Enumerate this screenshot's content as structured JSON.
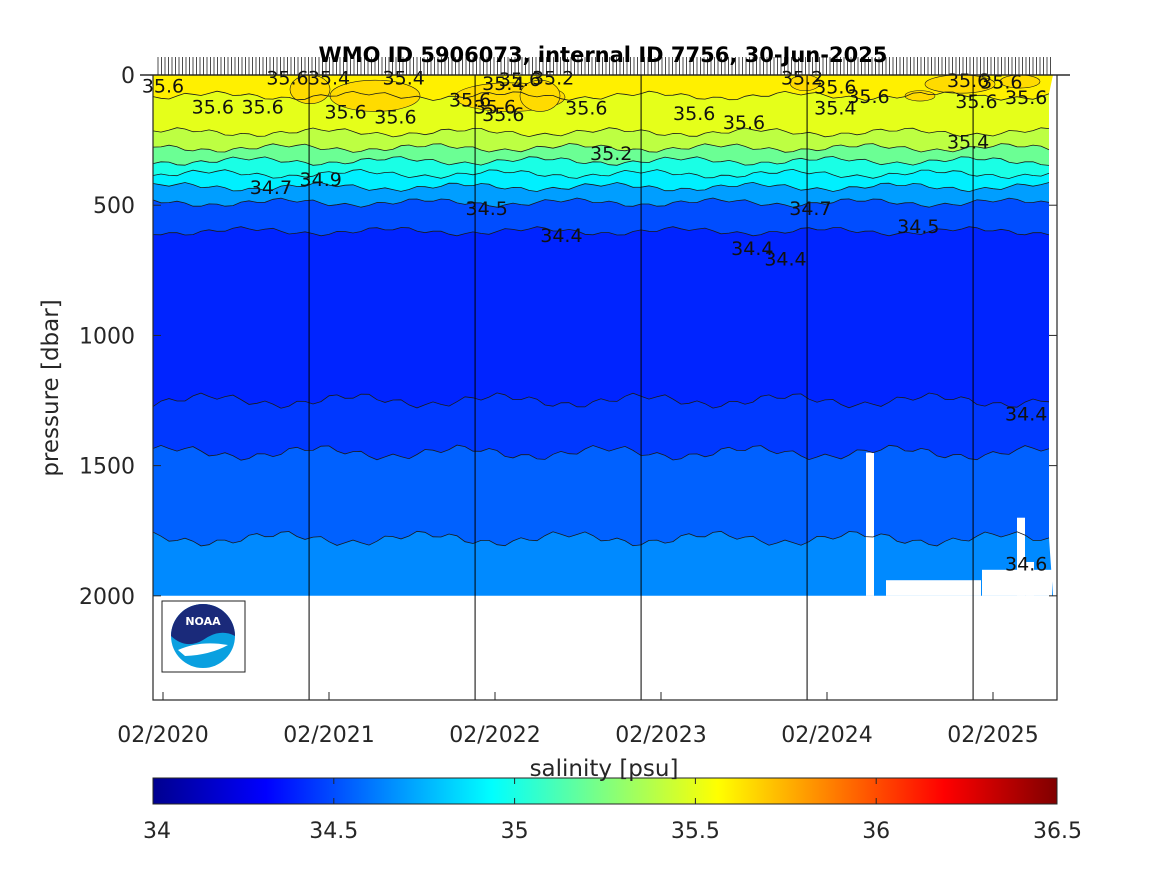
{
  "chart_data": {
    "type": "heatmap",
    "title": "WMO ID 5906073, internal ID 7756, 30-Jun-2025",
    "xlabel": "",
    "ylabel": "pressure [dbar]",
    "x_ticks": [
      "02/2020",
      "02/2021",
      "02/2022",
      "02/2023",
      "02/2024",
      "02/2025"
    ],
    "y_ticks": [
      0,
      500,
      1000,
      1500,
      2000
    ],
    "ylim": [
      2400,
      0
    ],
    "y_reversed": true,
    "colorbar": {
      "label": "salinity [psu]",
      "colormap": "jet",
      "ticks": [
        34,
        34.5,
        35,
        35.5,
        36,
        36.5
      ],
      "range": [
        34,
        36.5
      ]
    },
    "year_dividers": [
      "2021",
      "2022",
      "2023",
      "2024",
      "2025"
    ],
    "layers": [
      {
        "salinity": 35.6,
        "depth_top": 0,
        "depth_bottom": 80
      },
      {
        "salinity": 35.5,
        "depth_top": 80,
        "depth_bottom": 220
      },
      {
        "salinity": 35.4,
        "depth_top": 220,
        "depth_bottom": 280
      },
      {
        "salinity": 35.2,
        "depth_top": 280,
        "depth_bottom": 330
      },
      {
        "salinity": 35.0,
        "depth_top": 330,
        "depth_bottom": 380
      },
      {
        "salinity": 34.9,
        "depth_top": 380,
        "depth_bottom": 430
      },
      {
        "salinity": 34.7,
        "depth_top": 430,
        "depth_bottom": 490
      },
      {
        "salinity": 34.5,
        "depth_top": 490,
        "depth_bottom": 600
      },
      {
        "salinity": 34.4,
        "depth_top": 600,
        "depth_bottom": 1250
      },
      {
        "salinity": 34.45,
        "depth_top": 1250,
        "depth_bottom": 1450
      },
      {
        "salinity": 34.55,
        "depth_top": 1450,
        "depth_bottom": 1780
      },
      {
        "salinity": 34.65,
        "depth_top": 1780,
        "depth_bottom": 2000
      }
    ],
    "contour_labels": [
      {
        "text": "35.6",
        "x": 2020.0,
        "y": 40
      },
      {
        "text": "35.6",
        "x": 2020.3,
        "y": 120
      },
      {
        "text": "35.6",
        "x": 2020.6,
        "y": 120
      },
      {
        "text": "35.6",
        "x": 2020.75,
        "y": 10
      },
      {
        "text": "35.4",
        "x": 2021.0,
        "y": 10
      },
      {
        "text": "35.4",
        "x": 2021.45,
        "y": 10
      },
      {
        "text": "35.6",
        "x": 2021.1,
        "y": 140
      },
      {
        "text": "35.6",
        "x": 2021.4,
        "y": 160
      },
      {
        "text": "35.6",
        "x": 2021.85,
        "y": 95
      },
      {
        "text": "35.6",
        "x": 2022.0,
        "y": 120
      },
      {
        "text": "35.6",
        "x": 2022.05,
        "y": 150
      },
      {
        "text": "35.4",
        "x": 2022.05,
        "y": 30
      },
      {
        "text": "35.6",
        "x": 2022.15,
        "y": 15
      },
      {
        "text": "35.2",
        "x": 2022.35,
        "y": 10
      },
      {
        "text": "35.6",
        "x": 2022.55,
        "y": 125
      },
      {
        "text": "35.2",
        "x": 2022.7,
        "y": 300
      },
      {
        "text": "35.6",
        "x": 2023.2,
        "y": 145
      },
      {
        "text": "35.6",
        "x": 2023.5,
        "y": 180
      },
      {
        "text": "35.2",
        "x": 2023.85,
        "y": 10
      },
      {
        "text": "35.6",
        "x": 2024.05,
        "y": 45
      },
      {
        "text": "35.6",
        "x": 2024.25,
        "y": 80
      },
      {
        "text": "35.4",
        "x": 2024.05,
        "y": 125
      },
      {
        "text": "35.6",
        "x": 2024.85,
        "y": 20
      },
      {
        "text": "35.6",
        "x": 2025.05,
        "y": 25
      },
      {
        "text": "35.6",
        "x": 2025.2,
        "y": 85
      },
      {
        "text": "35.6",
        "x": 2024.9,
        "y": 100
      },
      {
        "text": "35.4",
        "x": 2024.85,
        "y": 255
      },
      {
        "text": "34.7",
        "x": 2020.65,
        "y": 430
      },
      {
        "text": "34.9",
        "x": 2020.95,
        "y": 400
      },
      {
        "text": "34.5",
        "x": 2021.95,
        "y": 510
      },
      {
        "text": "34.4",
        "x": 2022.4,
        "y": 615
      },
      {
        "text": "34.7",
        "x": 2023.9,
        "y": 510
      },
      {
        "text": "34.4",
        "x": 2023.55,
        "y": 665
      },
      {
        "text": "34.4",
        "x": 2023.75,
        "y": 705
      },
      {
        "text": "34.5",
        "x": 2024.55,
        "y": 580
      },
      {
        "text": "34.4",
        "x": 2025.2,
        "y": 1300
      },
      {
        "text": "34.6",
        "x": 2025.2,
        "y": 1875
      }
    ]
  },
  "logo": {
    "text": "NOAA"
  }
}
